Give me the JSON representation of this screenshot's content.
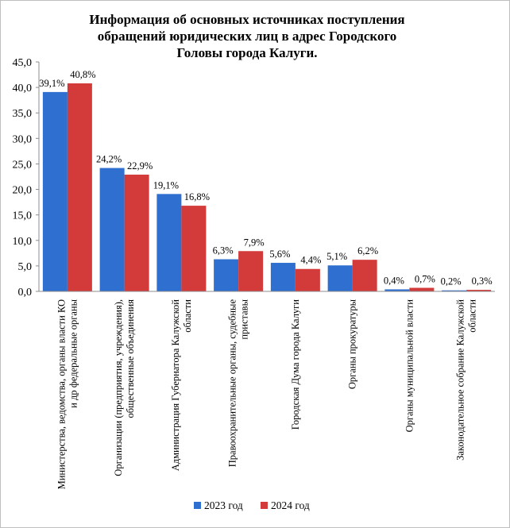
{
  "chart_data": {
    "type": "bar",
    "title": [
      "Информация об основных источниках поступления",
      "обращений юридических лиц в адрес Городского",
      "Головы города Калуги."
    ],
    "categories": [
      [
        "Министерства, ведомства, органы власти КО",
        "и др федеральные органы"
      ],
      [
        "Организации (предприятия, учреждения),",
        "общественные объединения"
      ],
      [
        "Администрация Губернатора Калужской",
        "области"
      ],
      [
        "Правоохранительные органы, судебные",
        "приставы"
      ],
      [
        "Городская Дума города Калуги"
      ],
      [
        "Органы прокуратуры"
      ],
      [
        "Органы муниципальной власти"
      ],
      [
        "Законодательное собрание Калужской",
        "области"
      ]
    ],
    "series": [
      {
        "name": "2023 год",
        "color": "#2e6fcf",
        "values": [
          39.1,
          24.2,
          19.1,
          6.3,
          5.6,
          5.1,
          0.4,
          0.2
        ],
        "labels": [
          "39,1%",
          "24,2%",
          "19,1%",
          "6,3%",
          "5,6%",
          "5,1%",
          "0,4%",
          "0,2%"
        ]
      },
      {
        "name": "2024 год",
        "color": "#d33a3a",
        "values": [
          40.8,
          22.9,
          16.8,
          7.9,
          4.4,
          6.2,
          0.7,
          0.3
        ],
        "labels": [
          "40,8%",
          "22,9%",
          "16,8%",
          "7,9%",
          "4,4%",
          "6,2%",
          "0,7%",
          "0,3%"
        ]
      }
    ],
    "yticks": [
      "0,0",
      "5,0",
      "10,0",
      "15,0",
      "20,0",
      "25,0",
      "30,0",
      "35,0",
      "40,0",
      "45,0"
    ],
    "ylim": [
      0,
      45
    ],
    "grid": false,
    "legend": "bottom"
  }
}
